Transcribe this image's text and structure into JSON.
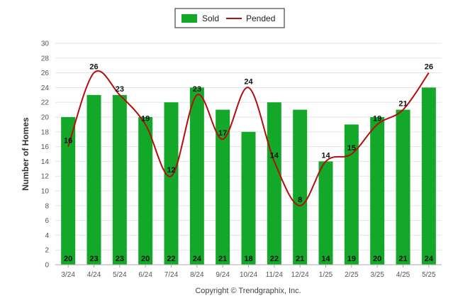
{
  "chart_data": {
    "type": "bar",
    "categories": [
      "3/24",
      "4/24",
      "5/24",
      "6/24",
      "7/24",
      "8/24",
      "9/24",
      "10/24",
      "11/24",
      "12/24",
      "1/25",
      "2/25",
      "3/25",
      "4/25",
      "5/25"
    ],
    "series": [
      {
        "name": "Sold",
        "type": "bar",
        "color": "#13a829",
        "values": [
          20,
          23,
          23,
          20,
          22,
          24,
          21,
          18,
          22,
          21,
          14,
          19,
          20,
          21,
          24
        ]
      },
      {
        "name": "Pended",
        "type": "line",
        "color": "#b50d0d",
        "values": [
          16,
          26,
          23,
          19,
          12,
          23,
          17,
          24,
          14,
          8,
          14,
          15,
          19,
          21,
          26
        ]
      }
    ],
    "ylabel": "Number of Homes",
    "ylim": [
      0,
      30
    ],
    "yticks": [
      0,
      2,
      4,
      6,
      8,
      10,
      12,
      14,
      16,
      18,
      20,
      22,
      24,
      26,
      28,
      30
    ],
    "grid": true,
    "legend": "top-center",
    "credit": "Copyright © Trendgraphix, Inc."
  }
}
